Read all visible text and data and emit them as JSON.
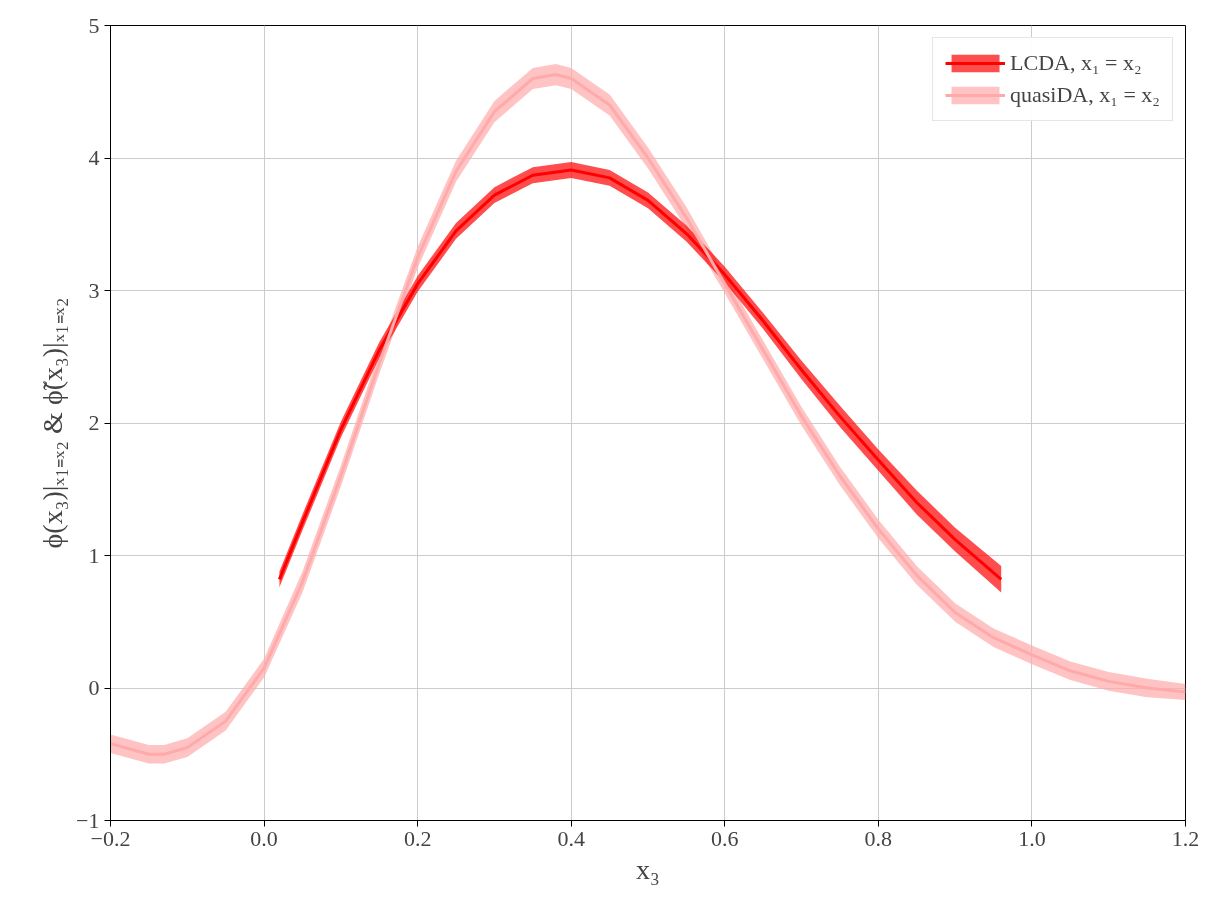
{
  "chart_data": {
    "type": "line",
    "xlabel": "x₃",
    "ylabel": "ϕ(x₃)|ₓ₁₌ₓ₂ & ϕ̃(x₃)|ₓ₁₌ₓ₂",
    "xlim": [
      -0.2,
      1.2
    ],
    "ylim": [
      -1,
      5
    ],
    "xticks": [
      {
        "value": -0.2,
        "label": "−0.2"
      },
      {
        "value": 0,
        "label": "0.0"
      },
      {
        "value": 0.2,
        "label": "0.2"
      },
      {
        "value": 0.4,
        "label": "0.4"
      },
      {
        "value": 0.6,
        "label": "0.6"
      },
      {
        "value": 0.8,
        "label": "0.8"
      },
      {
        "value": 1.0,
        "label": "1.0"
      },
      {
        "value": 1.2,
        "label": "1.2"
      }
    ],
    "yticks": [
      {
        "value": -1,
        "label": "−1"
      },
      0,
      1,
      2,
      3,
      4,
      5
    ],
    "grid": true,
    "legend": "top right",
    "series": [
      {
        "name": "LCDA, x₁ = x₂",
        "color": "#ff0000",
        "x": [
          0.02,
          0.05,
          0.1,
          0.15,
          0.2,
          0.25,
          0.3,
          0.35,
          0.4,
          0.45,
          0.5,
          0.55,
          0.6,
          0.65,
          0.7,
          0.75,
          0.8,
          0.85,
          0.9,
          0.96
        ],
        "values": [
          0.82,
          1.25,
          1.95,
          2.55,
          3.05,
          3.45,
          3.72,
          3.87,
          3.91,
          3.85,
          3.68,
          3.43,
          3.12,
          2.77,
          2.4,
          2.05,
          1.72,
          1.4,
          1.12,
          0.82
        ],
        "lower": [
          0.76,
          1.19,
          1.89,
          2.49,
          2.99,
          3.39,
          3.66,
          3.81,
          3.85,
          3.79,
          3.62,
          3.37,
          3.06,
          2.71,
          2.33,
          1.97,
          1.64,
          1.31,
          1.03,
          0.72
        ],
        "upper": [
          0.88,
          1.31,
          2.01,
          2.61,
          3.11,
          3.51,
          3.78,
          3.93,
          3.97,
          3.91,
          3.74,
          3.49,
          3.18,
          2.83,
          2.47,
          2.13,
          1.8,
          1.49,
          1.21,
          0.92
        ]
      },
      {
        "name": "quasiDA, x₁ = x₂",
        "color": "#ffaaaa",
        "x": [
          -0.2,
          -0.15,
          -0.13,
          -0.1,
          -0.05,
          0,
          0.05,
          0.1,
          0.15,
          0.2,
          0.25,
          0.3,
          0.35,
          0.38,
          0.4,
          0.45,
          0.5,
          0.55,
          0.6,
          0.65,
          0.7,
          0.75,
          0.8,
          0.85,
          0.9,
          0.95,
          1.0,
          1.05,
          1.1,
          1.15,
          1.2
        ],
        "values": [
          -0.42,
          -0.5,
          -0.5,
          -0.45,
          -0.25,
          0.15,
          0.8,
          1.6,
          2.45,
          3.25,
          3.9,
          4.35,
          4.6,
          4.63,
          4.6,
          4.4,
          4.0,
          3.55,
          3.05,
          2.55,
          2.05,
          1.6,
          1.2,
          0.85,
          0.57,
          0.38,
          0.25,
          0.13,
          0.05,
          0.0,
          -0.03
        ],
        "lower": [
          -0.49,
          -0.57,
          -0.57,
          -0.52,
          -0.32,
          0.08,
          0.72,
          1.52,
          2.37,
          3.17,
          3.82,
          4.27,
          4.52,
          4.55,
          4.52,
          4.32,
          3.92,
          3.47,
          2.98,
          2.48,
          1.98,
          1.53,
          1.13,
          0.78,
          0.5,
          0.31,
          0.18,
          0.06,
          -0.02,
          -0.07,
          -0.09
        ],
        "upper": [
          -0.35,
          -0.43,
          -0.43,
          -0.38,
          -0.18,
          0.22,
          0.88,
          1.68,
          2.53,
          3.33,
          3.98,
          4.43,
          4.68,
          4.71,
          4.68,
          4.48,
          4.08,
          3.63,
          3.12,
          2.62,
          2.12,
          1.67,
          1.27,
          0.92,
          0.64,
          0.45,
          0.32,
          0.2,
          0.12,
          0.07,
          0.03
        ]
      }
    ]
  }
}
